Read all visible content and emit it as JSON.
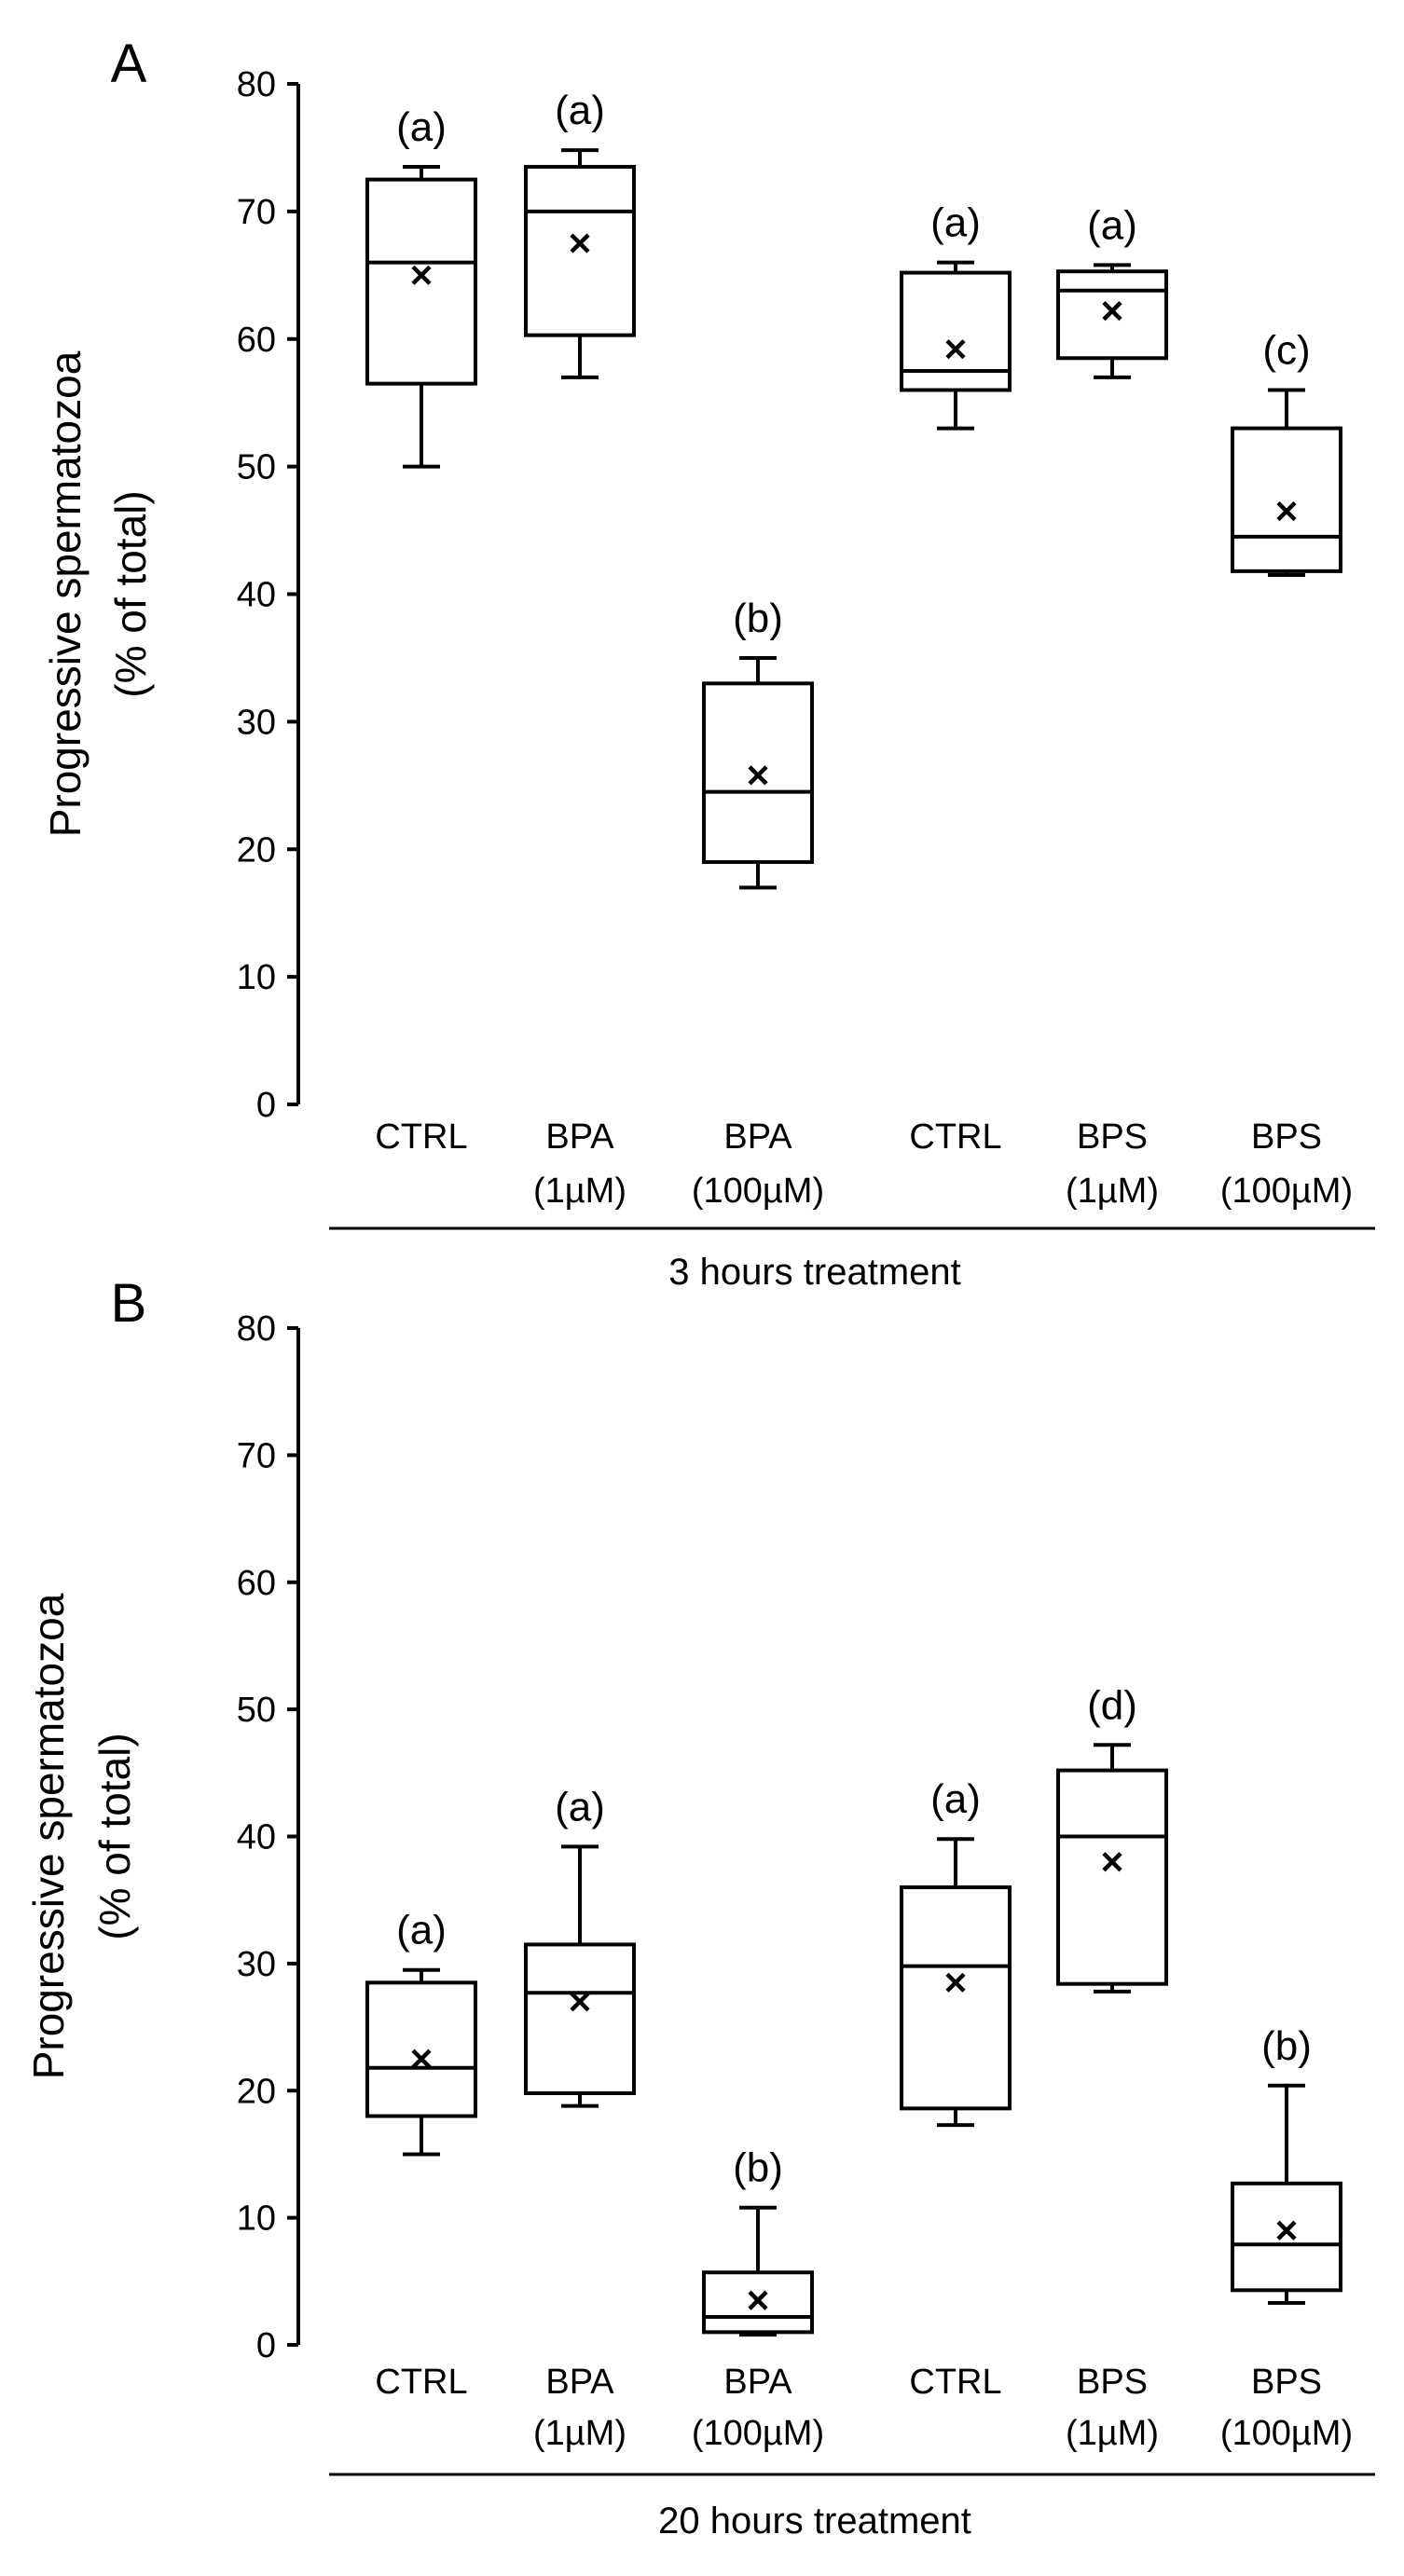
{
  "chart_data": [
    {
      "type": "box",
      "panel_label": "A",
      "ylabel": [
        "Progressive spermatozoa",
        "(% of total)"
      ],
      "ylim": [
        0,
        80
      ],
      "yticks": [
        0,
        10,
        20,
        30,
        40,
        50,
        60,
        70,
        80
      ],
      "group_label": "3 hours treatment",
      "categories": [
        {
          "line1": "CTRL",
          "line2": ""
        },
        {
          "line1": "BPA",
          "line2": "(1µM)"
        },
        {
          "line1": "BPA",
          "line2": "(100µM)"
        },
        {
          "line1": "CTRL",
          "line2": ""
        },
        {
          "line1": "BPS",
          "line2": "(1µM)"
        },
        {
          "line1": "BPS",
          "line2": "(100µM)"
        }
      ],
      "boxes": [
        {
          "min": 50,
          "q1": 56.5,
          "median": 66,
          "q3": 72.5,
          "max": 73.5,
          "mean": 65,
          "letter": "(a)"
        },
        {
          "min": 57,
          "q1": 60.3,
          "median": 70,
          "q3": 73.5,
          "max": 74.8,
          "mean": 67.5,
          "letter": "(a)"
        },
        {
          "min": 17,
          "q1": 19,
          "median": 24.5,
          "q3": 33,
          "max": 35,
          "mean": 25.8,
          "letter": "(b)"
        },
        {
          "min": 53,
          "q1": 56,
          "median": 57.5,
          "q3": 65.2,
          "max": 66,
          "mean": 59.2,
          "letter": "(a)"
        },
        {
          "min": 57,
          "q1": 58.5,
          "median": 63.8,
          "q3": 65.3,
          "max": 65.8,
          "mean": 62.2,
          "letter": "(a)"
        },
        {
          "min": 41.5,
          "q1": 41.8,
          "median": 44.5,
          "q3": 53,
          "max": 56,
          "mean": 46.5,
          "letter": "(c)"
        }
      ]
    },
    {
      "type": "box",
      "panel_label": "B",
      "ylabel": [
        "Progressive spermatozoa",
        "(% of total)"
      ],
      "ylim": [
        0,
        80
      ],
      "yticks": [
        0,
        10,
        20,
        30,
        40,
        50,
        60,
        70,
        80
      ],
      "group_label": "20 hours treatment",
      "categories": [
        {
          "line1": "CTRL",
          "line2": ""
        },
        {
          "line1": "BPA",
          "line2": "(1µM)"
        },
        {
          "line1": "BPA",
          "line2": "(100µM)"
        },
        {
          "line1": "CTRL",
          "line2": ""
        },
        {
          "line1": "BPS",
          "line2": "(1µM)"
        },
        {
          "line1": "BPS",
          "line2": "(100µM)"
        }
      ],
      "boxes": [
        {
          "min": 15,
          "q1": 18,
          "median": 21.8,
          "q3": 28.5,
          "max": 29.5,
          "mean": 22.5,
          "letter": "(a)"
        },
        {
          "min": 18.8,
          "q1": 19.8,
          "median": 27.7,
          "q3": 31.5,
          "max": 39.2,
          "mean": 27,
          "letter": "(a)"
        },
        {
          "min": 0.8,
          "q1": 1,
          "median": 2.2,
          "q3": 5.7,
          "max": 10.8,
          "mean": 3.5,
          "letter": "(b)"
        },
        {
          "min": 17.3,
          "q1": 18.6,
          "median": 29.8,
          "q3": 36,
          "max": 39.8,
          "mean": 28.5,
          "letter": "(a)"
        },
        {
          "min": 27.8,
          "q1": 28.4,
          "median": 40,
          "q3": 45.2,
          "max": 47.2,
          "mean": 38,
          "letter": "(d)"
        },
        {
          "min": 3.3,
          "q1": 4.3,
          "median": 7.9,
          "q3": 12.7,
          "max": 20.4,
          "mean": 9,
          "letter": "(b)"
        }
      ]
    }
  ]
}
